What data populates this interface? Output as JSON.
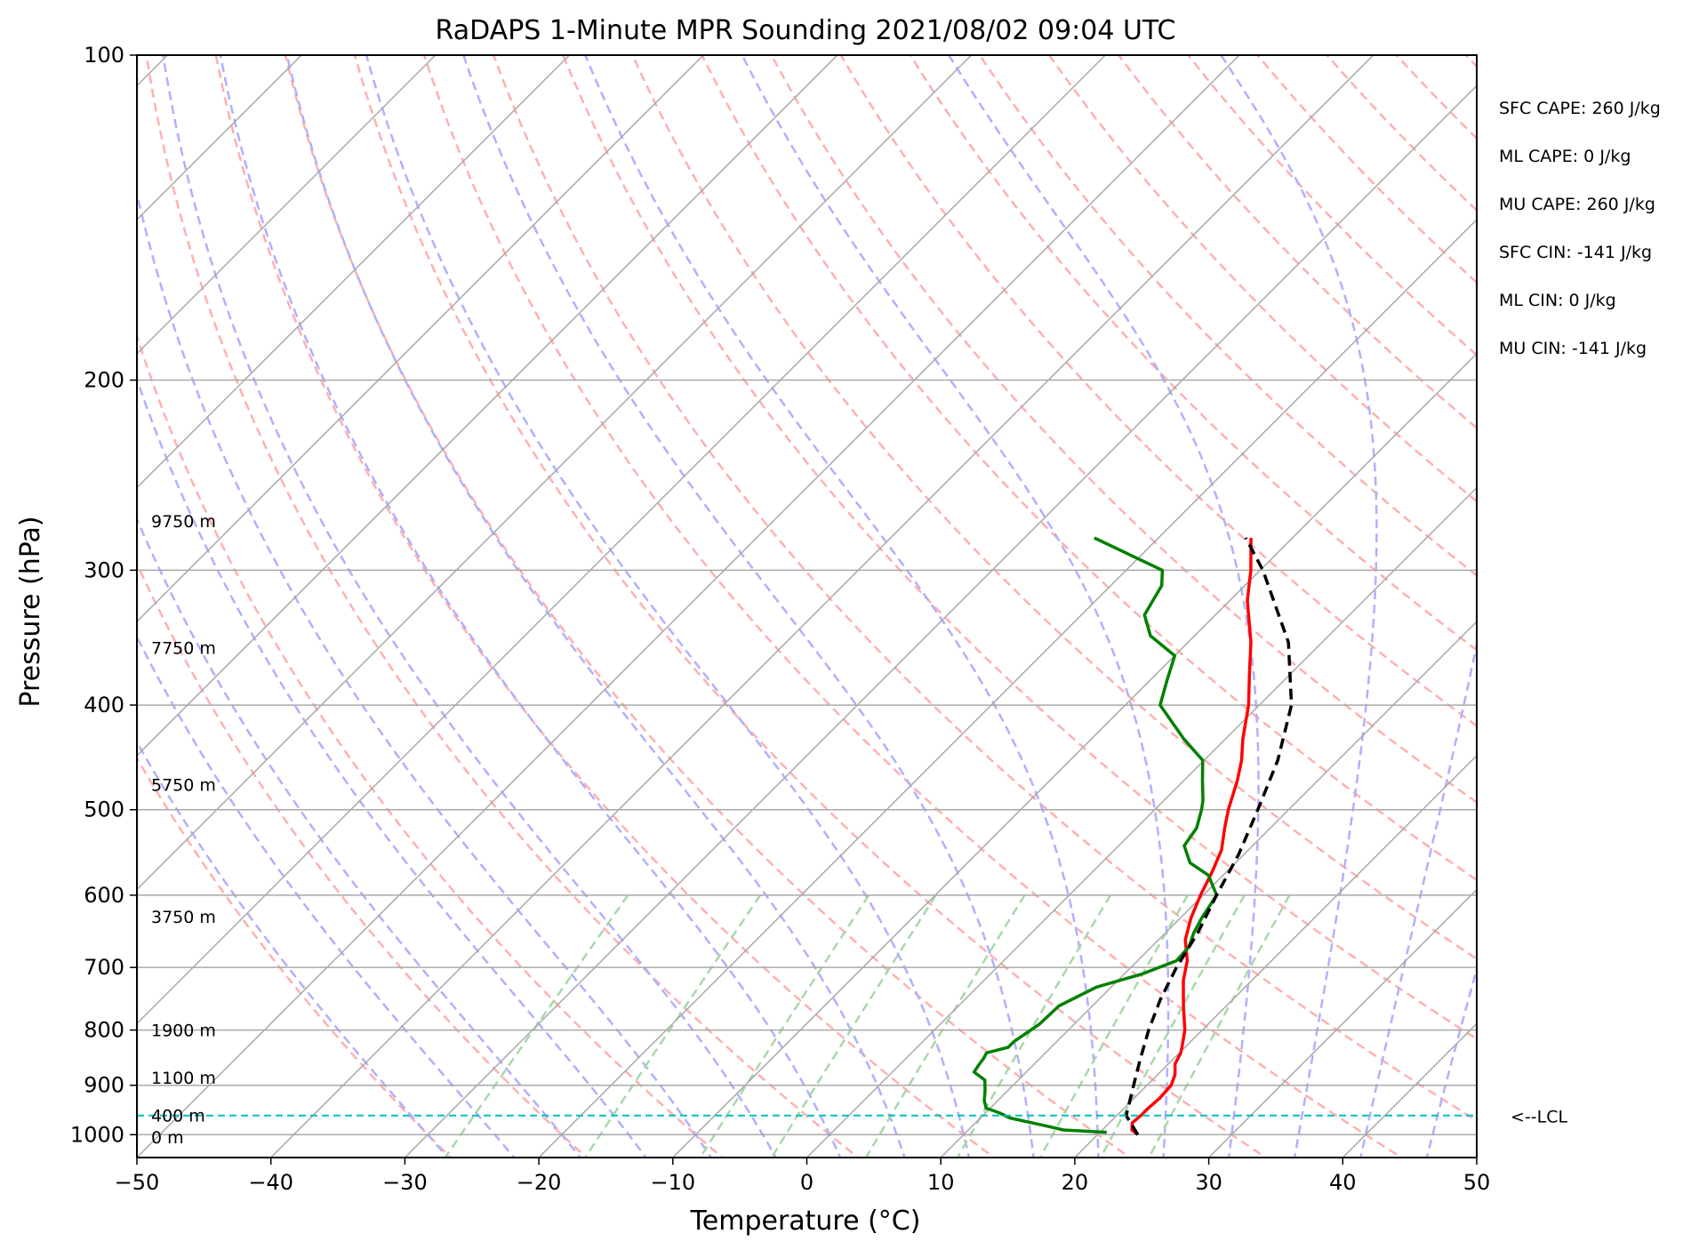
{
  "chart_data": {
    "type": "line",
    "title": "RaDAPS 1-Minute MPR Sounding 2021/08/02 09:04 UTC",
    "xlabel": "Temperature (°C)",
    "ylabel": "Pressure (hPa)",
    "xlim": [
      -50,
      50
    ],
    "ylim": [
      1050,
      100
    ],
    "y_scale": "log",
    "x_ticks": [
      -50,
      -40,
      -30,
      -20,
      -10,
      0,
      10,
      20,
      30,
      40,
      50
    ],
    "x_tick_labels": [
      "−50",
      "−40",
      "−30",
      "−20",
      "−10",
      "0",
      "10",
      "20",
      "30",
      "40",
      "50"
    ],
    "y_ticks": [
      100,
      200,
      300,
      400,
      500,
      600,
      700,
      800,
      900,
      1000
    ],
    "y_tick_labels": [
      "100",
      "200",
      "300",
      "400",
      "500",
      "600",
      "700",
      "800",
      "900",
      "1000"
    ],
    "skew": 45,
    "grid": true,
    "series": [
      {
        "role": "temperature",
        "color": "#ff0000",
        "points": [
          [
            1000,
            23.0
          ],
          [
            990,
            22.2
          ],
          [
            975,
            21.7
          ],
          [
            960,
            21.8
          ],
          [
            945,
            21.8
          ],
          [
            925,
            21.9
          ],
          [
            900,
            21.8
          ],
          [
            880,
            21.3
          ],
          [
            860,
            20.5
          ],
          [
            840,
            20.1
          ],
          [
            825,
            19.6
          ],
          [
            800,
            18.7
          ],
          [
            760,
            16.8
          ],
          [
            720,
            14.9
          ],
          [
            690,
            13.7
          ],
          [
            660,
            12.0
          ],
          [
            630,
            10.8
          ],
          [
            600,
            9.8
          ],
          [
            570,
            8.9
          ],
          [
            545,
            8.0
          ],
          [
            520,
            6.6
          ],
          [
            500,
            5.5
          ],
          [
            470,
            4.0
          ],
          [
            450,
            2.8
          ],
          [
            430,
            1.3
          ],
          [
            400,
            -0.8
          ],
          [
            375,
            -3.0
          ],
          [
            350,
            -5.3
          ],
          [
            320,
            -8.7
          ],
          [
            300,
            -10.7
          ],
          [
            280,
            -13.1
          ]
        ]
      },
      {
        "role": "dewpoint",
        "color": "#008000",
        "points": [
          [
            995,
            20.5
          ],
          [
            990,
            17.1
          ],
          [
            980,
            15.2
          ],
          [
            965,
            12.2
          ],
          [
            955,
            11.1
          ],
          [
            945,
            9.7
          ],
          [
            930,
            9.0
          ],
          [
            910,
            8.3
          ],
          [
            890,
            7.5
          ],
          [
            875,
            6.1
          ],
          [
            860,
            5.9
          ],
          [
            850,
            5.8
          ],
          [
            840,
            5.6
          ],
          [
            830,
            6.8
          ],
          [
            820,
            6.8
          ],
          [
            800,
            7.2
          ],
          [
            790,
            7.4
          ],
          [
            760,
            7.5
          ],
          [
            730,
            8.9
          ],
          [
            710,
            11.3
          ],
          [
            690,
            12.9
          ],
          [
            670,
            12.8
          ],
          [
            650,
            12.1
          ],
          [
            630,
            11.6
          ],
          [
            600,
            11.0
          ],
          [
            575,
            8.9
          ],
          [
            560,
            6.6
          ],
          [
            540,
            4.9
          ],
          [
            520,
            4.5
          ],
          [
            500,
            3.5
          ],
          [
            490,
            2.9
          ],
          [
            470,
            1.4
          ],
          [
            450,
            -0.1
          ],
          [
            430,
            -3.1
          ],
          [
            400,
            -7.4
          ],
          [
            380,
            -8.7
          ],
          [
            360,
            -10.0
          ],
          [
            345,
            -13.3
          ],
          [
            330,
            -15.3
          ],
          [
            310,
            -16.2
          ],
          [
            300,
            -17.3
          ],
          [
            280,
            -24.8
          ]
        ]
      },
      {
        "role": "parcel",
        "color": "#000000",
        "style": "dashed",
        "points": [
          [
            1000,
            23.0
          ],
          [
            960,
            20.7
          ],
          [
            900,
            19.0
          ],
          [
            850,
            17.5
          ],
          [
            800,
            16.0
          ],
          [
            750,
            14.6
          ],
          [
            700,
            13.4
          ],
          [
            650,
            12.4
          ],
          [
            600,
            11.0
          ],
          [
            550,
            9.6
          ],
          [
            500,
            7.7
          ],
          [
            450,
            5.5
          ],
          [
            400,
            2.4
          ],
          [
            350,
            -2.5
          ],
          [
            300,
            -9.8
          ],
          [
            280,
            -13.5
          ]
        ]
      }
    ],
    "lcl_pressure": 960,
    "lcl_label": "<--LCL",
    "lcl_color": "#00bfbf",
    "dry_adiabat_color": "#ffb0b0",
    "moist_adiabat_color": "#b0b0ff",
    "mixing_ratio_color": "#a8d8a8",
    "isotherm_color": "#a9a9a9",
    "height_labels": [
      {
        "text": "0 m",
        "p": 1005
      },
      {
        "text": "400 m",
        "p": 960
      },
      {
        "text": "1100 m",
        "p": 885
      },
      {
        "text": "1900 m",
        "p": 800
      },
      {
        "text": "3750 m",
        "p": 628
      },
      {
        "text": "5750 m",
        "p": 474
      },
      {
        "text": "7750 m",
        "p": 354
      },
      {
        "text": "9750 m",
        "p": 270
      }
    ],
    "stats": [
      "SFC CAPE: 260 J/kg",
      "ML CAPE: 0 J/kg",
      "MU CAPE: 260 J/kg",
      "SFC CIN: -141 J/kg",
      "ML CIN: 0 J/kg",
      "MU CIN: -141 J/kg"
    ]
  }
}
